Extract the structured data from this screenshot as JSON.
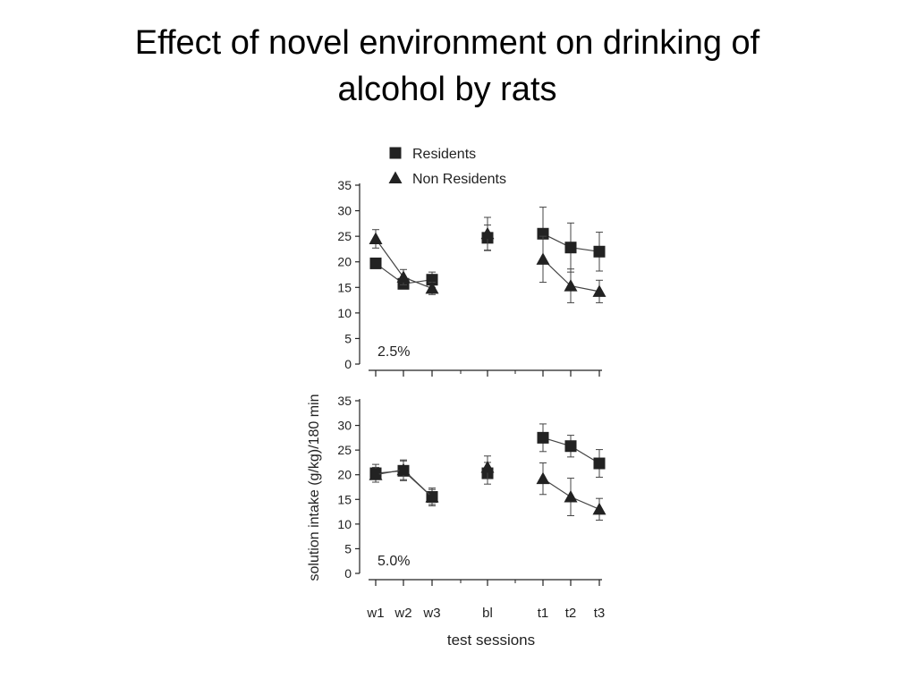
{
  "slide": {
    "title_line1": "Effect of novel environment on drinking of",
    "title_line2": "alcohol by rats"
  },
  "colors": {
    "ink": "#222222",
    "background": "#ffffff"
  },
  "chart_data": [
    {
      "type": "line",
      "panel_label": "2.5%",
      "categories": [
        "w1",
        "w2",
        "w3",
        "bl",
        "t1",
        "t2",
        "t3"
      ],
      "ylim": [
        0,
        35
      ],
      "yticks": [
        0,
        5,
        10,
        15,
        20,
        25,
        30,
        35
      ],
      "ylabel": "solution intake (g/kg)/180 min",
      "xlabel": "test sessions",
      "legend_position": "top",
      "series": [
        {
          "name": "Residents",
          "marker": "square",
          "values": [
            19.7,
            15.7,
            16.5,
            24.7,
            25.5,
            22.8,
            22.0
          ],
          "errors": [
            0.8,
            1.0,
            1.5,
            2.5,
            5.2,
            4.8,
            3.8
          ]
        },
        {
          "name": "Non Residents",
          "marker": "triangle",
          "values": [
            24.5,
            17.0,
            14.8,
            25.5,
            20.5,
            15.3,
            14.2
          ],
          "errors": [
            1.8,
            1.5,
            1.2,
            3.2,
            4.5,
            3.3,
            2.2
          ]
        }
      ]
    },
    {
      "type": "line",
      "panel_label": "5.0%",
      "categories": [
        "w1",
        "w2",
        "w3",
        "bl",
        "t1",
        "t2",
        "t3"
      ],
      "ylim": [
        0,
        35
      ],
      "yticks": [
        0,
        5,
        10,
        15,
        20,
        25,
        30,
        35
      ],
      "ylabel": "solution intake (g/kg)/180 min",
      "xlabel": "test sessions",
      "series": [
        {
          "name": "Residents",
          "marker": "square",
          "values": [
            20.3,
            20.8,
            15.5,
            20.3,
            27.5,
            25.8,
            22.3
          ],
          "errors": [
            1.8,
            2.0,
            1.5,
            2.2,
            2.8,
            2.2,
            2.8
          ]
        },
        {
          "name": "Non Residents",
          "marker": "triangle",
          "values": [
            20.0,
            21.0,
            15.5,
            21.5,
            19.2,
            15.5,
            13.0
          ],
          "errors": [
            1.5,
            2.0,
            1.8,
            2.3,
            3.2,
            3.8,
            2.2
          ]
        }
      ]
    }
  ]
}
